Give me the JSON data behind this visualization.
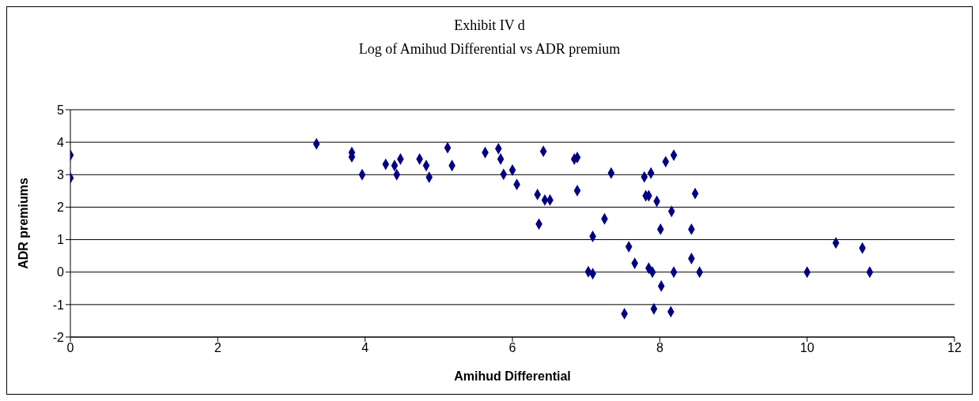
{
  "chart_data": {
    "type": "scatter",
    "title": "Exhibit IV d",
    "subtitle": "Log of Amihud Differential vs ADR premium",
    "xlabel": "Amihud Differential",
    "ylabel": "ADR premiums",
    "x": [
      0,
      0,
      3.34,
      3.82,
      3.82,
      3.96,
      4.28,
      4.4,
      4.43,
      4.48,
      4.74,
      4.83,
      4.87,
      5.12,
      5.18,
      5.63,
      5.81,
      5.84,
      5.88,
      6.0,
      6.06,
      6.34,
      6.42,
      6.44,
      6.51,
      6.36,
      6.84,
      6.88,
      6.88,
      7.34,
      7.25,
      7.09,
      7.03,
      7.09,
      7.58,
      7.66,
      7.52,
      7.79,
      7.88,
      7.81,
      7.85,
      7.96,
      8.08,
      8.19,
      8.16,
      8.01,
      7.85,
      7.9,
      8.02,
      7.92,
      8.15,
      8.19,
      8.48,
      8.43,
      8.43,
      8.54,
      10.0,
      10.39,
      10.75,
      10.85
    ],
    "values": [
      3.6,
      2.9,
      3.95,
      3.68,
      3.55,
      3.0,
      3.32,
      3.28,
      3.0,
      3.48,
      3.48,
      3.28,
      2.92,
      3.83,
      3.28,
      3.68,
      3.8,
      3.48,
      3.01,
      3.14,
      2.7,
      2.39,
      3.72,
      2.22,
      2.22,
      1.48,
      3.48,
      3.53,
      2.51,
      3.05,
      1.64,
      1.1,
      0.01,
      -0.05,
      0.78,
      0.27,
      -1.28,
      2.93,
      3.05,
      2.35,
      2.35,
      2.18,
      3.4,
      3.6,
      1.87,
      1.32,
      0.12,
      0.0,
      -0.43,
      -1.13,
      -1.22,
      0.0,
      2.42,
      1.32,
      0.42,
      0.0,
      0.0,
      0.9,
      0.74,
      0.0
    ],
    "color": "#000080",
    "marker": "diamond",
    "xlim": [
      0,
      12
    ],
    "xticks": [
      0,
      2,
      4,
      6,
      8,
      10,
      12
    ],
    "ylim": [
      -2,
      5
    ],
    "yticks": [
      -2,
      -1,
      0,
      1,
      2,
      3,
      4,
      5
    ],
    "grid": "y"
  }
}
